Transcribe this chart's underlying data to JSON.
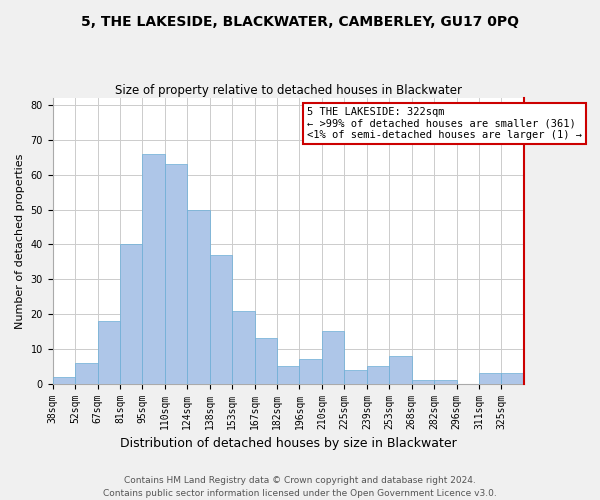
{
  "title": "5, THE LAKESIDE, BLACKWATER, CAMBERLEY, GU17 0PQ",
  "subtitle": "Size of property relative to detached houses in Blackwater",
  "xlabel": "Distribution of detached houses by size in Blackwater",
  "ylabel": "Number of detached properties",
  "bin_labels": [
    "38sqm",
    "52sqm",
    "67sqm",
    "81sqm",
    "95sqm",
    "110sqm",
    "124sqm",
    "138sqm",
    "153sqm",
    "167sqm",
    "182sqm",
    "196sqm",
    "210sqm",
    "225sqm",
    "239sqm",
    "253sqm",
    "268sqm",
    "282sqm",
    "296sqm",
    "311sqm",
    "325sqm"
  ],
  "bar_values": [
    2,
    6,
    18,
    40,
    66,
    63,
    50,
    37,
    21,
    13,
    5,
    7,
    15,
    4,
    5,
    8,
    1,
    1,
    0,
    3,
    3
  ],
  "bar_color": "#aec6e8",
  "bar_edge_color": "#6baed6",
  "highlight_color": "#cc0000",
  "annotation_title": "5 THE LAKESIDE: 322sqm",
  "annotation_line1": "← >99% of detached houses are smaller (361)",
  "annotation_line2": "<1% of semi-detached houses are larger (1) →",
  "ylim": [
    0,
    82
  ],
  "yticks": [
    0,
    10,
    20,
    30,
    40,
    50,
    60,
    70,
    80
  ],
  "footer_line1": "Contains HM Land Registry data © Crown copyright and database right 2024.",
  "footer_line2": "Contains public sector information licensed under the Open Government Licence v3.0.",
  "bg_color": "#f0f0f0",
  "plot_bg_color": "#ffffff",
  "grid_color": "#cccccc",
  "title_fontsize": 10,
  "subtitle_fontsize": 8.5,
  "xlabel_fontsize": 9,
  "ylabel_fontsize": 8,
  "tick_fontsize": 7,
  "footer_fontsize": 6.5,
  "annotation_fontsize": 7.5
}
